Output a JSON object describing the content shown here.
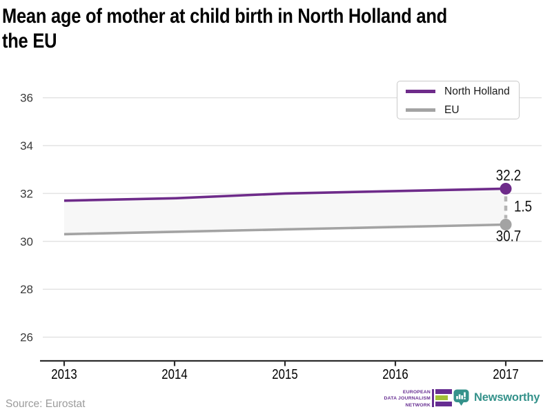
{
  "title": {
    "full": "Mean age of mother at child birth in North Holland and the EU",
    "lines": [
      "Mean age of mother at child birth in North Holland and",
      "the EU"
    ]
  },
  "legend": {
    "items": [
      {
        "label": "North Holland",
        "color": "#6e2b8a"
      },
      {
        "label": "EU",
        "color": "#a3a3a3"
      }
    ]
  },
  "chart_data": {
    "type": "line",
    "title": "Mean age of mother at child birth in North Holland and the EU",
    "x": [
      2013,
      2014,
      2015,
      2016,
      2017
    ],
    "series": [
      {
        "name": "North Holland",
        "color": "#6e2b8a",
        "values": [
          31.7,
          31.8,
          32.0,
          32.1,
          32.2
        ]
      },
      {
        "name": "EU",
        "color": "#a3a3a3",
        "values": [
          30.3,
          30.4,
          30.5,
          30.6,
          30.7
        ]
      }
    ],
    "end_labels": {
      "north_holland": "32.2",
      "difference": "1.5",
      "eu": "30.7"
    },
    "yticks": [
      36,
      34,
      32,
      30,
      28,
      26
    ],
    "ylim": [
      25.2,
      36.8
    ],
    "xlabel": "",
    "ylabel": "",
    "grid": "horizontal",
    "legend_position": "top-right",
    "band_fill": "#f7f7f7",
    "gridline_color": "#e3e3e3",
    "axis_color": "#2b2b2b",
    "connector_color": "#b5b5b5"
  },
  "footer": {
    "source": "Source: Eurostat",
    "edjn": {
      "lines": [
        "EUROPEAN",
        "DATA JOURNALISM",
        "NETWORK"
      ],
      "purple": "#662d91",
      "green": "#a2c037"
    },
    "newsworthy": {
      "label": "Newsworthy",
      "color": "#35928b"
    }
  }
}
